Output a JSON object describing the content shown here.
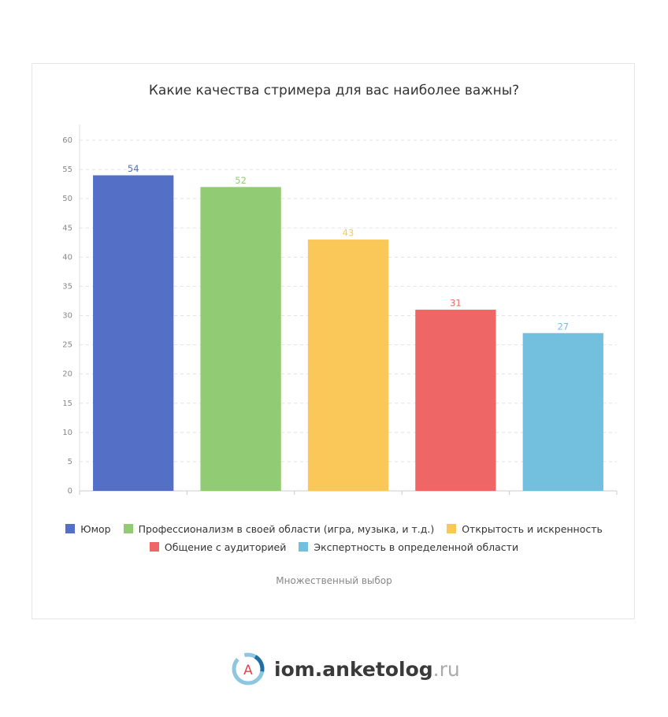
{
  "chart_data": {
    "type": "bar",
    "title": "Какие качества стримера для вас наиболее важны?",
    "series": [
      {
        "name": "Юмор",
        "color": "#5470c6",
        "values": [
          54
        ]
      },
      {
        "name": "Профессионализм в своей области (игра, музыка, и т.д.)",
        "color": "#91cc75",
        "values": [
          52
        ]
      },
      {
        "name": "Открытость и искренность",
        "color": "#fac858",
        "values": [
          43
        ]
      },
      {
        "name": "Общение с аудиторией",
        "color": "#ee6666",
        "values": [
          31
        ]
      },
      {
        "name": "Экспертность в определенной области",
        "color": "#73c0de",
        "values": [
          27
        ]
      }
    ],
    "ylim": [
      0,
      60
    ],
    "yticks": [
      0,
      5,
      10,
      15,
      20,
      25,
      30,
      35,
      40,
      45,
      50,
      55,
      60
    ],
    "grid": true,
    "note": "Множественный выбор"
  },
  "footer": {
    "logo_letter": "A",
    "brand": "iom.anketolog",
    "domain": ".ru"
  }
}
